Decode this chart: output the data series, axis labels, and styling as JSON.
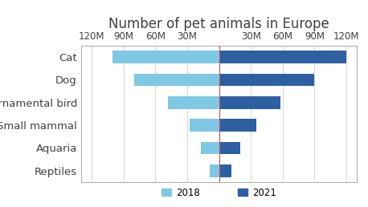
{
  "title": "Number of pet animals in Europe",
  "categories": [
    "Reptiles",
    "Aquaria",
    "Small mammal",
    "Ornamental bird",
    "Dog",
    "Cat"
  ],
  "values_2018": [
    9,
    17,
    28,
    48,
    80,
    100
  ],
  "values_2021": [
    12,
    20,
    35,
    58,
    90,
    120
  ],
  "color_2018": "#7EC8E3",
  "color_2021": "#2E5FA3",
  "xlim": 130,
  "xticks": [
    -120,
    -90,
    -60,
    -30,
    30,
    60,
    90,
    120
  ],
  "xtick_labels": [
    "120M",
    "90M",
    "60M",
    "30M",
    "30M",
    "60M",
    "90M",
    "120M"
  ],
  "legend_2018": "2018",
  "legend_2021": "2021",
  "grid_color": "#D0D0D0",
  "center_line_color": "#C0504D",
  "background_color": "#FFFFFF",
  "border_color": "#AAAAAA",
  "title_fontsize": 12,
  "axis_fontsize": 8.5,
  "label_fontsize": 9.5,
  "bar_height": 0.55
}
